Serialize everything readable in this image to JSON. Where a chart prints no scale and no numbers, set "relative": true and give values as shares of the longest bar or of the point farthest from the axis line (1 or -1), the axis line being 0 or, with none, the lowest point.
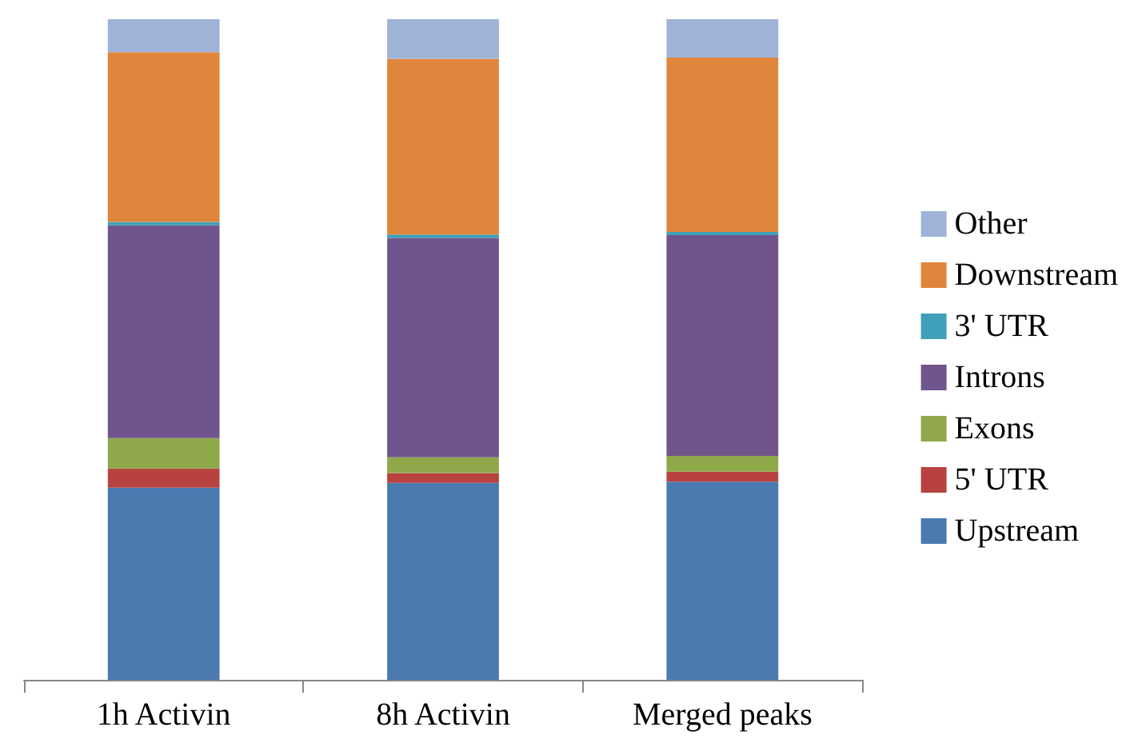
{
  "chart_data": {
    "type": "bar",
    "stacked": true,
    "relative": true,
    "legend": "right",
    "categories": [
      "1h Activin",
      "8h Activin",
      "Merged peaks"
    ],
    "series": [
      {
        "name": "Upstream",
        "color": "#4a7ab0",
        "values": [
          0.291,
          0.298,
          0.3
        ]
      },
      {
        "name": "5' UTR",
        "color": "#b8423f",
        "values": [
          0.029,
          0.015,
          0.015
        ]
      },
      {
        "name": "Exons",
        "color": "#8ea84a",
        "values": [
          0.046,
          0.024,
          0.024
        ]
      },
      {
        "name": "Introns",
        "color": "#6f558b",
        "values": [
          0.322,
          0.332,
          0.334
        ]
      },
      {
        "name": "3' UTR",
        "color": "#3f9fb8",
        "values": [
          0.005,
          0.005,
          0.005
        ]
      },
      {
        "name": "Downstream",
        "color": "#e0853c",
        "values": [
          0.257,
          0.266,
          0.264
        ]
      },
      {
        "name": "Other",
        "color": "#9fb3d9",
        "values": [
          0.05,
          0.06,
          0.058
        ]
      }
    ]
  }
}
